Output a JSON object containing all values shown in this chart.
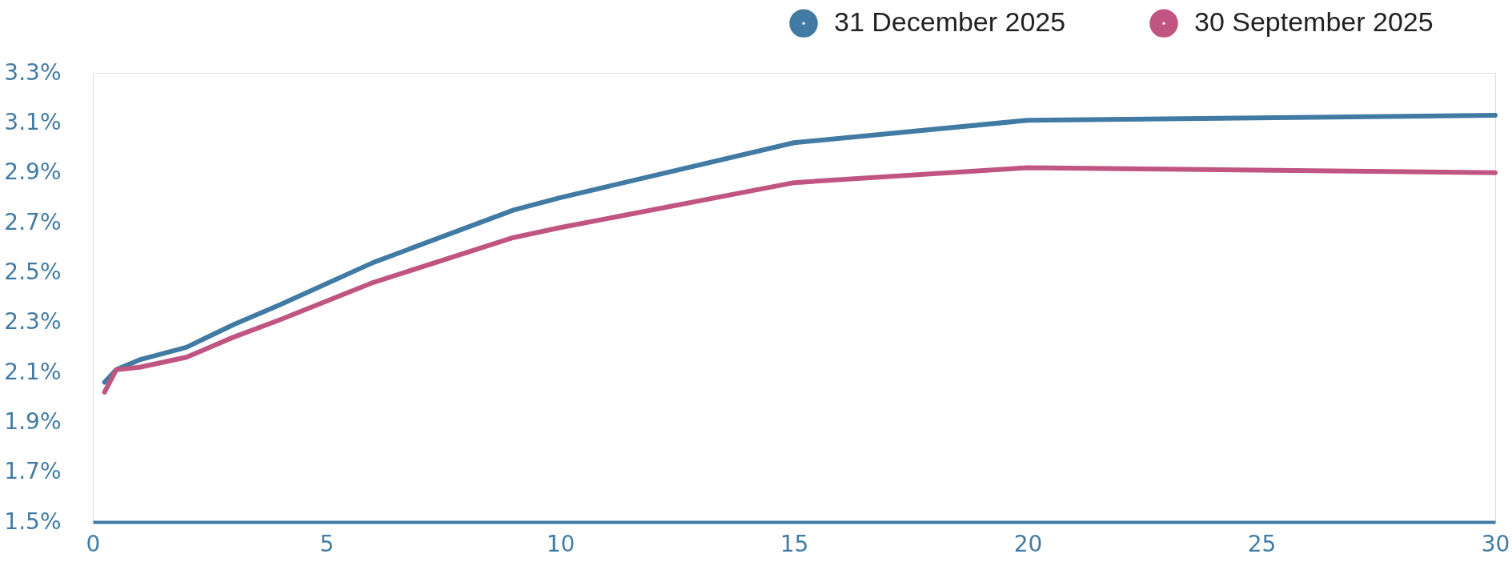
{
  "chart_data": {
    "type": "line",
    "x": [
      0.25,
      0.5,
      1,
      2,
      3,
      4,
      6,
      9,
      10,
      15,
      20,
      30
    ],
    "series": [
      {
        "name": "31 December 2025",
        "color": "#417ba4",
        "values": [
          2.06,
          2.11,
          2.15,
          2.2,
          2.29,
          2.37,
          2.54,
          2.75,
          2.8,
          3.02,
          3.11,
          3.13
        ]
      },
      {
        "name": "30 September 2025",
        "color": "#c05581",
        "values": [
          2.02,
          2.11,
          2.12,
          2.16,
          2.24,
          2.31,
          2.46,
          2.64,
          2.68,
          2.86,
          2.92,
          2.9
        ]
      }
    ],
    "xlim": [
      0,
      30
    ],
    "xticks": [
      0,
      5,
      10,
      15,
      20,
      25,
      30
    ],
    "ylim": [
      1.5,
      3.3
    ],
    "yticks": [
      {
        "value": 1.5,
        "label": "1.5%"
      },
      {
        "value": 1.7,
        "label": "1.7%"
      },
      {
        "value": 1.9,
        "label": "1.9%"
      },
      {
        "value": 2.1,
        "label": "2.1%"
      },
      {
        "value": 2.3,
        "label": "2.3%"
      },
      {
        "value": 2.5,
        "label": "2.5%"
      },
      {
        "value": 2.7,
        "label": "2.7%"
      },
      {
        "value": 2.9,
        "label": "2.9%"
      },
      {
        "value": 3.1,
        "label": "3.1%"
      },
      {
        "value": 3.3,
        "label": "3.3%"
      }
    ],
    "grid": false,
    "legend": "top right",
    "marker": "none",
    "line_style": "solid"
  }
}
